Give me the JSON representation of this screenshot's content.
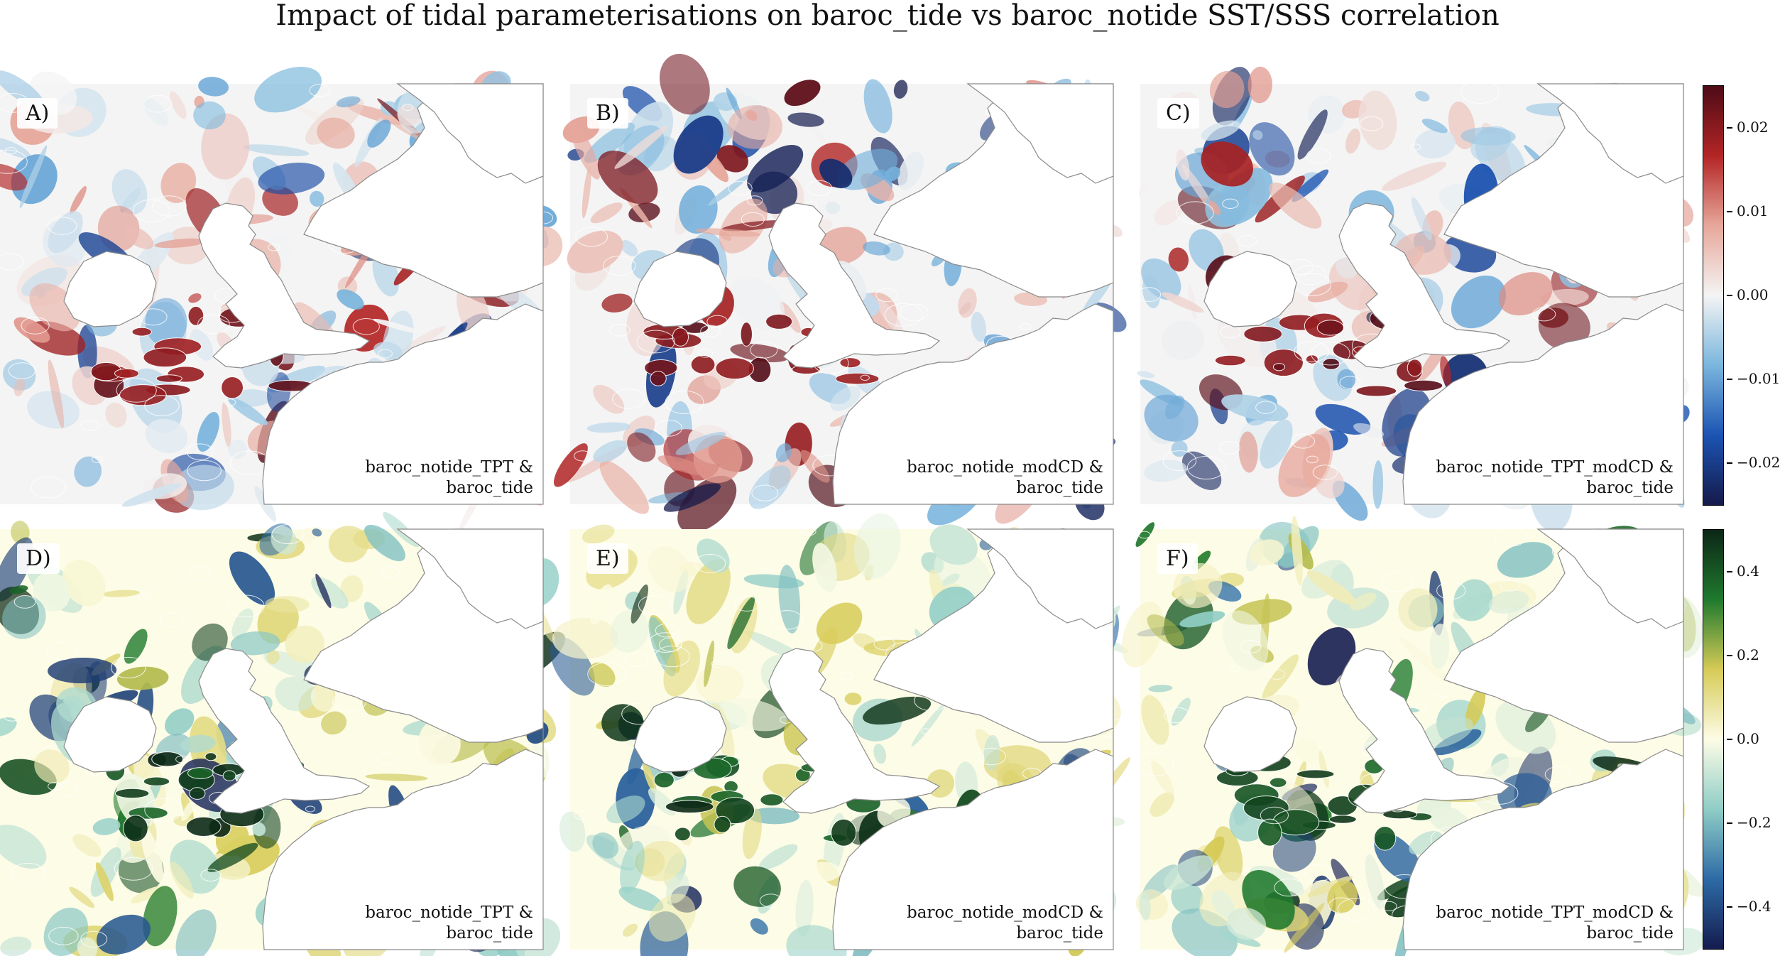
{
  "title": "Impact of tidal parameterisations on baroc_tide vs baroc_notide SST/SSS correlation",
  "colors": {
    "land": "#ffffff",
    "coast": "#8a8a8a",
    "row1_map": [
      "#151a4a",
      "#1b54b3",
      "#7ab6dd",
      "#f4f4f4",
      "#e7a79a",
      "#b42525",
      "#4d0b17"
    ],
    "row2_map": [
      "#141b4f",
      "#2d6ba6",
      "#8fcdc6",
      "#fdfce6",
      "#d6cb56",
      "#1f7a2e",
      "#0c2616"
    ]
  },
  "chart_data": [
    {
      "type": "heatmap",
      "row": 1,
      "panel": "A)",
      "label": "A)",
      "caption": "baroc_notide_TPT &\nbaroc_tide",
      "seed": 11,
      "hot_seed": 3,
      "colorbar_range": [
        -0.025,
        0.025
      ]
    },
    {
      "type": "heatmap",
      "row": 1,
      "panel": "B)",
      "label": "B)",
      "caption": "baroc_notide_modCD &\nbaroc_tide",
      "seed": 27,
      "hot_seed": 5,
      "colorbar_range": [
        -0.025,
        0.025
      ]
    },
    {
      "type": "heatmap",
      "row": 1,
      "panel": "C)",
      "label": "C)",
      "caption": "baroc_notide_TPT_modCD &\nbaroc_tide",
      "seed": 43,
      "hot_seed": 7,
      "colorbar_range": [
        -0.025,
        0.025
      ]
    },
    {
      "type": "heatmap",
      "row": 2,
      "panel": "D)",
      "label": "D)",
      "caption": "baroc_notide_TPT &\nbaroc_tide",
      "seed": 61,
      "hot_seed": 2,
      "colorbar_range": [
        -0.5,
        0.5
      ]
    },
    {
      "type": "heatmap",
      "row": 2,
      "panel": "E)",
      "label": "E)",
      "caption": "baroc_notide_modCD &\nbaroc_tide",
      "seed": 79,
      "hot_seed": 9,
      "colorbar_range": [
        -0.5,
        0.5
      ]
    },
    {
      "type": "heatmap",
      "row": 2,
      "panel": "F)",
      "label": "F)",
      "caption": "baroc_notide_TPT_modCD &\nbaroc_tide",
      "seed": 97,
      "hot_seed": 4,
      "colorbar_range": [
        -0.5,
        0.5
      ]
    }
  ],
  "colorbars": [
    {
      "name": "sst-colorbar",
      "ticks": [
        "0.02",
        "0.01",
        "0.00",
        "−0.01",
        "−0.02"
      ],
      "values": [
        0.02,
        0.01,
        0.0,
        -0.01,
        -0.02
      ],
      "range": [
        -0.025,
        0.025
      ]
    },
    {
      "name": "sss-colorbar",
      "ticks": [
        "0.4",
        "0.2",
        "0.0",
        "−0.2",
        "−0.4"
      ],
      "values": [
        0.4,
        0.2,
        0.0,
        -0.2,
        -0.4
      ],
      "range": [
        -0.5,
        0.5
      ]
    }
  ]
}
